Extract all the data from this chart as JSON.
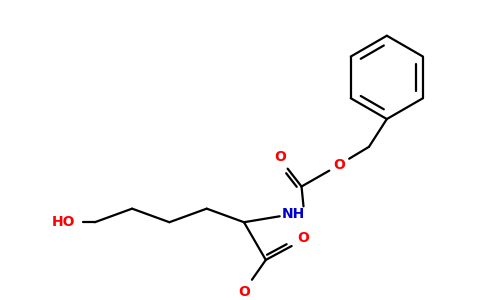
{
  "bg_color": "#ffffff",
  "bond_color": "#000000",
  "O_color": "#ff0000",
  "N_color": "#0000cd",
  "bond_lw": 1.6,
  "fig_width": 4.84,
  "fig_height": 3.0,
  "dpi": 100,
  "xlim": [
    0,
    484
  ],
  "ylim": [
    0,
    300
  ]
}
